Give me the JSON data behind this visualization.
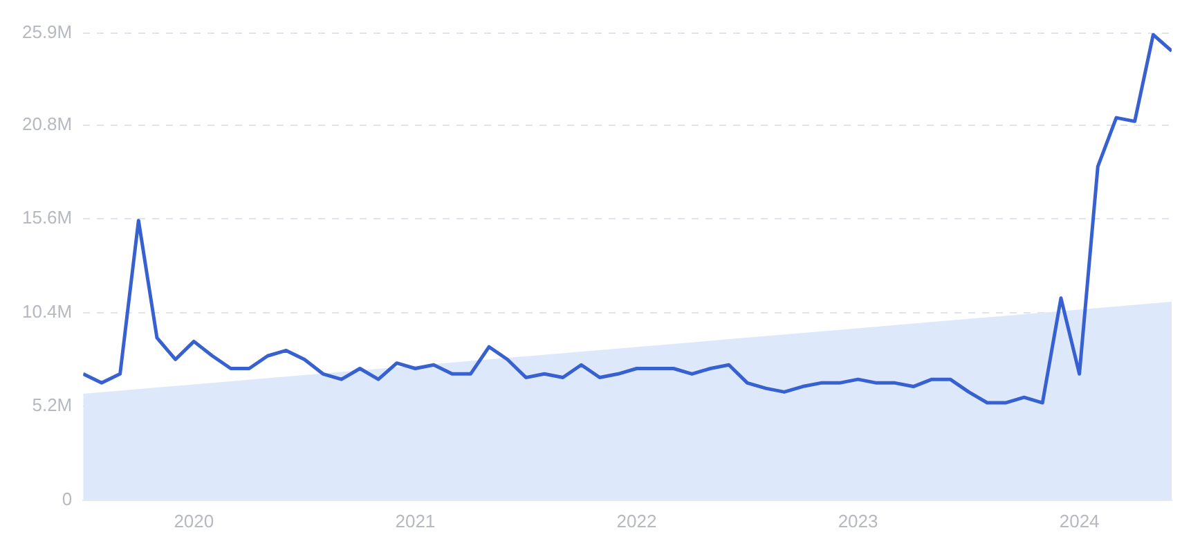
{
  "chart_data": {
    "type": "line",
    "x": [
      "2019-07",
      "2019-08",
      "2019-09",
      "2019-10",
      "2019-11",
      "2019-12",
      "2020-01",
      "2020-02",
      "2020-03",
      "2020-04",
      "2020-05",
      "2020-06",
      "2020-07",
      "2020-08",
      "2020-09",
      "2020-10",
      "2020-11",
      "2020-12",
      "2021-01",
      "2021-02",
      "2021-03",
      "2021-04",
      "2021-05",
      "2021-06",
      "2021-07",
      "2021-08",
      "2021-09",
      "2021-10",
      "2021-11",
      "2021-12",
      "2022-01",
      "2022-02",
      "2022-03",
      "2022-04",
      "2022-05",
      "2022-06",
      "2022-07",
      "2022-08",
      "2022-09",
      "2022-10",
      "2022-11",
      "2022-12",
      "2023-01",
      "2023-02",
      "2023-03",
      "2023-04",
      "2023-05",
      "2023-06",
      "2023-07",
      "2023-08",
      "2023-09",
      "2023-10",
      "2023-11",
      "2023-12",
      "2024-01",
      "2024-02",
      "2024-03",
      "2024-04",
      "2024-05",
      "2024-06"
    ],
    "series": [
      {
        "type": "area",
        "color": "#dde9fb",
        "x": [
          "2019-07",
          "2024-06"
        ],
        "values": [
          5900000,
          11000000
        ]
      },
      {
        "type": "line",
        "color": "#3760d0",
        "values": [
          7000000,
          6500000,
          7000000,
          15500000,
          9000000,
          7800000,
          8800000,
          8000000,
          7300000,
          7300000,
          8000000,
          8300000,
          7800000,
          7000000,
          6700000,
          7300000,
          6700000,
          7600000,
          7300000,
          7500000,
          7000000,
          7000000,
          8500000,
          7800000,
          6800000,
          7000000,
          6800000,
          7500000,
          6800000,
          7000000,
          7300000,
          7300000,
          7300000,
          7000000,
          7300000,
          7500000,
          6500000,
          6200000,
          6000000,
          6300000,
          6500000,
          6500000,
          6700000,
          6500000,
          6500000,
          6300000,
          6700000,
          6700000,
          6000000,
          5400000,
          5400000,
          5700000,
          5400000,
          11200000,
          7000000,
          18500000,
          21200000,
          21000000,
          25800000,
          24900000
        ]
      }
    ],
    "xlim": [
      "2019-07",
      "2024-06"
    ],
    "xticks": [
      "2020",
      "2021",
      "2022",
      "2023",
      "2024"
    ],
    "ylim": [
      0,
      25900000
    ],
    "yticks": [
      0,
      {
        "value": 5200000,
        "label": "5.2M"
      },
      {
        "value": 10400000,
        "label": "10.4M"
      },
      {
        "value": 15600000,
        "label": "15.6M"
      },
      {
        "value": 20800000,
        "label": "20.8M"
      },
      {
        "value": 25900000,
        "label": "25.9M"
      }
    ],
    "grid": "y",
    "line_style": "solid",
    "marker": "none",
    "legend": false
  }
}
